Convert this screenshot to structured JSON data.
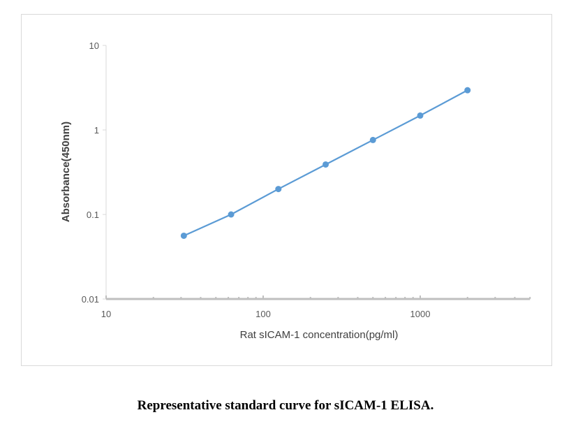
{
  "chart_data": {
    "type": "scatter",
    "x_scale": "log",
    "y_scale": "log",
    "xlim": [
      10,
      5000
    ],
    "ylim": [
      0.01,
      10
    ],
    "xlabel": "Rat sICAM-1 concentration(pg/ml)",
    "ylabel": "Absorbance(450nm)",
    "x_ticks": [
      "10",
      "100",
      "1000"
    ],
    "y_ticks": [
      "0.01",
      "0.1",
      "1",
      "10"
    ],
    "grid": false,
    "series": [
      {
        "x": [
          31.25,
          62.5,
          125,
          250,
          500,
          1000,
          2000
        ],
        "y": [
          0.056,
          0.1,
          0.2,
          0.39,
          0.76,
          1.48,
          2.95
        ],
        "color": "#5b9bd5",
        "line": true,
        "markers": true
      }
    ]
  },
  "caption": "Representative standard curve for sICAM-1 ELISA."
}
